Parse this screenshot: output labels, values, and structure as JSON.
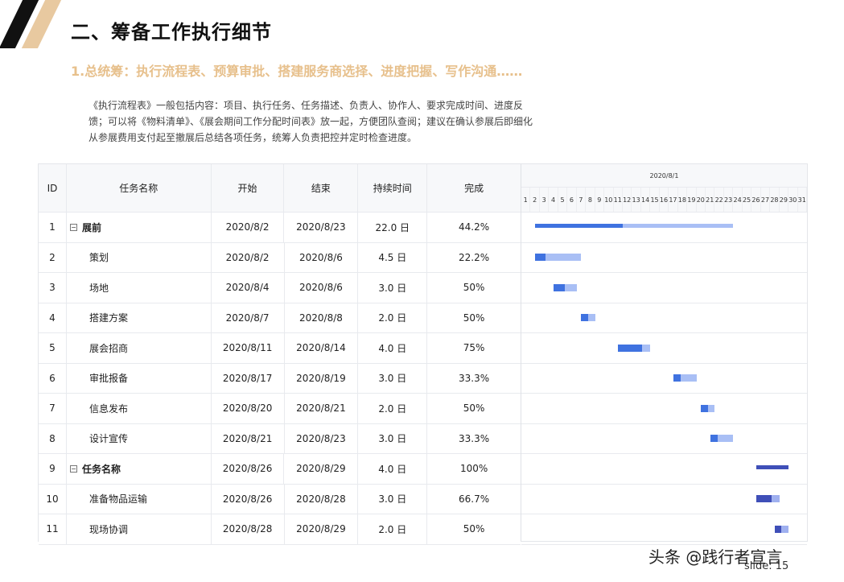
{
  "slide": {
    "title": "二、筹备工作执行细节",
    "subtitle": "1.总统筹：执行流程表、预算审批、搭建服务商选择、进度把握、写作沟通……",
    "description": "《执行流程表》一般包括内容：项目、执行任务、任务描述、负责人、协作人、要求完成时间、进度反馈；可以将《物料清单》、《展会期间工作分配时间表》放一起，方便团队查阅；建议在确认参展后即细化从参展费用支付起至撤展后总结各项任务，统筹人负责把控并定时检查进度。",
    "watermark": "头条 @践行者宣言",
    "slide_number": "slide: 15"
  },
  "gantt": {
    "columns": [
      "ID",
      "任务名称",
      "开始",
      "结束",
      "持续时间",
      "完成"
    ],
    "month_label": "2020/8/1",
    "days": [
      "1",
      "2",
      "3",
      "4",
      "5",
      "6",
      "7",
      "8",
      "9",
      "10",
      "11",
      "12",
      "13",
      "14",
      "15",
      "16",
      "17",
      "18",
      "19",
      "20",
      "21",
      "22",
      "23",
      "24",
      "25",
      "26",
      "27",
      "28",
      "29",
      "30",
      "31"
    ],
    "toggle_symbol": "⊟",
    "rows": [
      {
        "id": "1",
        "name": "展前",
        "start": "2020/8/2",
        "end": "2020/8/23",
        "duration": "22.0 日",
        "complete": "44.2%",
        "summary": true,
        "group": "a",
        "start_day": 2,
        "end_day": 23,
        "progress": 0.442
      },
      {
        "id": "2",
        "name": "策划",
        "start": "2020/8/2",
        "end": "2020/8/6",
        "duration": "4.5 日",
        "complete": "22.2%",
        "summary": false,
        "group": "a",
        "start_day": 2,
        "end_day": 6.5,
        "progress": 0.222
      },
      {
        "id": "3",
        "name": "场地",
        "start": "2020/8/4",
        "end": "2020/8/6",
        "duration": "3.0 日",
        "complete": "50%",
        "summary": false,
        "group": "a",
        "start_day": 4,
        "end_day": 6,
        "progress": 0.5
      },
      {
        "id": "4",
        "name": "搭建方案",
        "start": "2020/8/7",
        "end": "2020/8/8",
        "duration": "2.0 日",
        "complete": "50%",
        "summary": false,
        "group": "a",
        "start_day": 7,
        "end_day": 8,
        "progress": 0.5
      },
      {
        "id": "5",
        "name": "展会招商",
        "start": "2020/8/11",
        "end": "2020/8/14",
        "duration": "4.0 日",
        "complete": "75%",
        "summary": false,
        "group": "a",
        "start_day": 11,
        "end_day": 14,
        "progress": 0.75
      },
      {
        "id": "6",
        "name": "审批报备",
        "start": "2020/8/17",
        "end": "2020/8/19",
        "duration": "3.0 日",
        "complete": "33.3%",
        "summary": false,
        "group": "a",
        "start_day": 17,
        "end_day": 19,
        "progress": 0.333
      },
      {
        "id": "7",
        "name": "信息发布",
        "start": "2020/8/20",
        "end": "2020/8/21",
        "duration": "2.0 日",
        "complete": "50%",
        "summary": false,
        "group": "a",
        "start_day": 20,
        "end_day": 21,
        "progress": 0.5
      },
      {
        "id": "8",
        "name": "设计宣传",
        "start": "2020/8/21",
        "end": "2020/8/23",
        "duration": "3.0 日",
        "complete": "33.3%",
        "summary": false,
        "group": "a",
        "start_day": 21,
        "end_day": 23,
        "progress": 0.333
      },
      {
        "id": "9",
        "name": "任务名称",
        "start": "2020/8/26",
        "end": "2020/8/29",
        "duration": "4.0 日",
        "complete": "100%",
        "summary": true,
        "group": "b",
        "start_day": 26,
        "end_day": 29,
        "progress": 1.0
      },
      {
        "id": "10",
        "name": "准备物品运输",
        "start": "2020/8/26",
        "end": "2020/8/28",
        "duration": "3.0 日",
        "complete": "66.7%",
        "summary": false,
        "group": "b",
        "start_day": 26,
        "end_day": 28,
        "progress": 0.667
      },
      {
        "id": "11",
        "name": "现场协调",
        "start": "2020/8/28",
        "end": "2020/8/29",
        "duration": "2.0 日",
        "complete": "50%",
        "summary": false,
        "group": "b",
        "start_day": 28,
        "end_day": 29,
        "progress": 0.5
      }
    ]
  }
}
